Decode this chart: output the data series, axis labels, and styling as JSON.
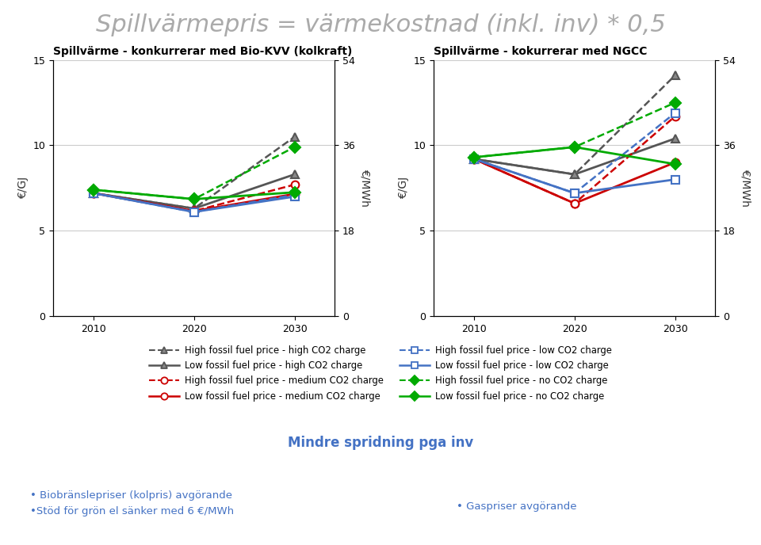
{
  "title": "Spillvärmepris = värmekostnad (inkl. inv) * 0,5",
  "title_color": "#aaaaaa",
  "title_fontsize": 22,
  "subplot1_title": "Spillvärme - konkurrerar med Bio-KVV (kolkraft)",
  "subplot2_title": "Spillvärme - kokurrerar med NGCC",
  "subplot_title_fontsize": 10,
  "years": [
    2010,
    2020,
    2030
  ],
  "left_ylim": [
    0,
    15
  ],
  "left_yticks": [
    0,
    5,
    10,
    15
  ],
  "right_ylim": [
    0,
    54
  ],
  "right_yticks": [
    0,
    18,
    36,
    54
  ],
  "left_ylabel": "€/GJ",
  "right_ylabel": "€/MWh",
  "chart1": {
    "high_high": [
      7.2,
      6.3,
      10.5
    ],
    "high_medium": [
      7.2,
      6.15,
      7.7
    ],
    "high_low": [
      7.2,
      6.1,
      7.1
    ],
    "high_no": [
      7.4,
      6.85,
      9.9
    ],
    "low_high": [
      7.2,
      6.3,
      8.3
    ],
    "low_medium": [
      7.2,
      6.15,
      7.15
    ],
    "low_low": [
      7.2,
      6.1,
      7.0
    ],
    "low_no": [
      7.4,
      6.85,
      7.25
    ]
  },
  "chart2": {
    "high_high": [
      9.2,
      8.3,
      14.1
    ],
    "high_medium": [
      9.2,
      6.6,
      11.7
    ],
    "high_low": [
      9.2,
      7.2,
      11.9
    ],
    "high_no": [
      9.3,
      9.9,
      12.5
    ],
    "low_high": [
      9.2,
      8.3,
      10.4
    ],
    "low_medium": [
      9.2,
      6.6,
      9.0
    ],
    "low_low": [
      9.2,
      7.2,
      8.0
    ],
    "low_no": [
      9.3,
      9.9,
      8.9
    ]
  },
  "colors": {
    "black": "#555555",
    "red": "#cc0000",
    "blue": "#4472c4",
    "green": "#00aa00"
  },
  "bottom_text_center": "Mindre spridning pga inv",
  "bottom_text_left": "• Biobränslepriser (kolpris) avgörande\n•Stöd för grön el sänker med 6 €/MWh",
  "bottom_text_right": "• Gaspriser avgörande",
  "bottom_color": "#4472c4"
}
